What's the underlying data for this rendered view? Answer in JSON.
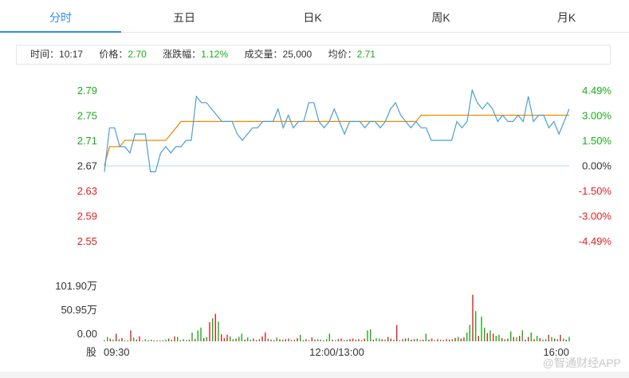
{
  "tabs": [
    {
      "label": "分时",
      "active": true
    },
    {
      "label": "五日",
      "active": false
    },
    {
      "label": "日K",
      "active": false
    },
    {
      "label": "周K",
      "active": false
    },
    {
      "label": "月K",
      "active": false
    }
  ],
  "info": {
    "time_label": "时间：",
    "time_value": "10:17",
    "price_label": "价格：",
    "price_value": "2.70",
    "change_label": "涨跌幅：",
    "change_value": "1.12%",
    "volume_label": "成交量：",
    "volume_value": "25,000",
    "avg_label": "均价：",
    "avg_value": "2.71"
  },
  "watermark": "@智通财经APP",
  "colors": {
    "up": "#e02020",
    "down": "#1aad19",
    "price_line": "#4a9fd5",
    "avg_line": "#f08a00",
    "accent": "#2d8cf0"
  },
  "chart_data": [
    {
      "type": "line",
      "title": "",
      "ylim": [
        2.55,
        2.79
      ],
      "y_tick_labels": [
        "2.79",
        "2.75",
        "2.71",
        "2.67",
        "2.63",
        "2.59",
        "2.55"
      ],
      "right_tick_labels": [
        "4.49%",
        "3.00%",
        "1.50%",
        "0.00%",
        "-1.50%",
        "-3.00%",
        "-4.49%"
      ],
      "reference_price": 2.67,
      "series": [
        {
          "values": [
            2.66,
            2.73,
            2.73,
            2.7,
            2.7,
            2.69,
            2.72,
            2.72,
            2.72,
            2.66,
            2.66,
            2.69,
            2.7,
            2.69,
            2.7,
            2.7,
            2.71,
            2.71,
            2.78,
            2.77,
            2.77,
            2.76,
            2.75,
            2.74,
            2.74,
            2.74,
            2.72,
            2.71,
            2.72,
            2.73,
            2.73,
            2.74,
            2.74,
            2.74,
            2.76,
            2.73,
            2.75,
            2.73,
            2.74,
            2.74,
            2.77,
            2.77,
            2.74,
            2.73,
            2.74,
            2.76,
            2.74,
            2.72,
            2.74,
            2.74,
            2.74,
            2.73,
            2.74,
            2.74,
            2.73,
            2.74,
            2.76,
            2.77,
            2.75,
            2.74,
            2.73,
            2.74,
            2.73,
            2.73,
            2.71,
            2.71,
            2.71,
            2.71,
            2.71,
            2.74,
            2.73,
            2.74,
            2.79,
            2.77,
            2.76,
            2.77,
            2.76,
            2.74,
            2.75,
            2.74,
            2.74,
            2.75,
            2.74,
            2.78,
            2.74,
            2.75,
            2.75,
            2.73,
            2.74,
            2.72,
            2.74,
            2.76
          ]
        },
        {
          "values": [
            2.67,
            2.7,
            2.7,
            2.7,
            2.71,
            2.71,
            2.71,
            2.71,
            2.71,
            2.71,
            2.71,
            2.71,
            2.71,
            2.72,
            2.73,
            2.74,
            2.74,
            2.74,
            2.74,
            2.74,
            2.74,
            2.74,
            2.74,
            2.74,
            2.74,
            2.74,
            2.74,
            2.74,
            2.74,
            2.74,
            2.74,
            2.74,
            2.74,
            2.74,
            2.74,
            2.74,
            2.74,
            2.74,
            2.74,
            2.74,
            2.74,
            2.74,
            2.74,
            2.74,
            2.74,
            2.74,
            2.74,
            2.74,
            2.74,
            2.74,
            2.74,
            2.74,
            2.74,
            2.74,
            2.74,
            2.74,
            2.74,
            2.74,
            2.74,
            2.74,
            2.74,
            2.74,
            2.75,
            2.75,
            2.75,
            2.75,
            2.75,
            2.75,
            2.75,
            2.75,
            2.75,
            2.75,
            2.75,
            2.75,
            2.75,
            2.75,
            2.75,
            2.75,
            2.75,
            2.75,
            2.75,
            2.75,
            2.75,
            2.75,
            2.75,
            2.75,
            2.75,
            2.75,
            2.75,
            2.75,
            2.75,
            2.75
          ]
        }
      ]
    },
    {
      "type": "bar",
      "ylim": [
        0,
        101.9
      ],
      "y_tick_labels": [
        "101.90万",
        "50.95万",
        "0.00"
      ],
      "y_label": "股",
      "x_tick_labels": [
        "09:30",
        "12:00/13:00",
        "16:00"
      ],
      "values": [
        2,
        8,
        5,
        3,
        14,
        4,
        6,
        1,
        2,
        20,
        7,
        3,
        9,
        1,
        4,
        2,
        3,
        1,
        2,
        1,
        2,
        3,
        5,
        3,
        9,
        8,
        2,
        4,
        2,
        3,
        16,
        4,
        20,
        25,
        6,
        8,
        35,
        42,
        50,
        36,
        13,
        6,
        12,
        9,
        4,
        5,
        8,
        14,
        3,
        7,
        3,
        5,
        2,
        4,
        9,
        16,
        5,
        3,
        2,
        7,
        4,
        3,
        4,
        5,
        2,
        3,
        6,
        12,
        2,
        4,
        2,
        7,
        3,
        4,
        3,
        1,
        4,
        14,
        3,
        2,
        4,
        5,
        2,
        3,
        4,
        5,
        3,
        4,
        2,
        5,
        20,
        22,
        3,
        6,
        5,
        4,
        3,
        8,
        5,
        3,
        30,
        2,
        4,
        5,
        6,
        3,
        4,
        5,
        2,
        3,
        14,
        3,
        5,
        2,
        4,
        3,
        2,
        4,
        3,
        4,
        6,
        8,
        5,
        7,
        16,
        30,
        85,
        55,
        10,
        45,
        25,
        15,
        20,
        14,
        10,
        12,
        6,
        4,
        5,
        18,
        8,
        7,
        10,
        20,
        3,
        8,
        16,
        4,
        10,
        6,
        3,
        4,
        12,
        8,
        5,
        4,
        12,
        5,
        3,
        8
      ],
      "up": [
        1,
        0,
        1,
        0,
        1,
        0,
        1,
        1,
        0,
        1,
        0,
        1,
        1,
        0,
        0,
        1,
        0,
        1,
        0,
        1,
        0,
        0,
        1,
        0,
        1,
        0,
        1,
        0,
        1,
        0,
        0,
        1,
        0,
        0,
        1,
        0,
        1,
        0,
        1,
        0,
        1,
        1,
        1,
        0,
        0,
        1,
        0,
        0,
        1,
        0,
        0,
        1,
        1,
        0,
        1,
        1,
        0,
        1,
        1,
        0,
        1,
        0,
        1,
        1,
        1,
        0,
        1,
        0,
        1,
        1,
        0,
        1,
        1,
        0,
        0,
        1,
        0,
        0,
        1,
        0,
        1,
        1,
        1,
        0,
        1,
        1,
        0,
        1,
        1,
        1,
        0,
        0,
        1,
        0,
        0,
        1,
        0,
        1,
        1,
        0,
        1,
        0,
        1,
        1,
        0,
        1,
        1,
        0,
        1,
        1,
        0,
        1,
        1,
        0,
        1,
        0,
        1,
        1,
        1,
        0,
        1,
        0,
        1,
        1,
        0,
        0,
        1,
        0,
        1,
        0,
        0,
        1,
        0,
        1,
        0,
        0,
        1,
        0,
        1,
        0,
        1,
        0,
        1,
        0,
        1,
        1,
        0,
        1,
        0,
        1,
        0,
        0,
        1,
        0,
        1,
        0,
        1,
        0,
        1,
        0
      ]
    }
  ]
}
